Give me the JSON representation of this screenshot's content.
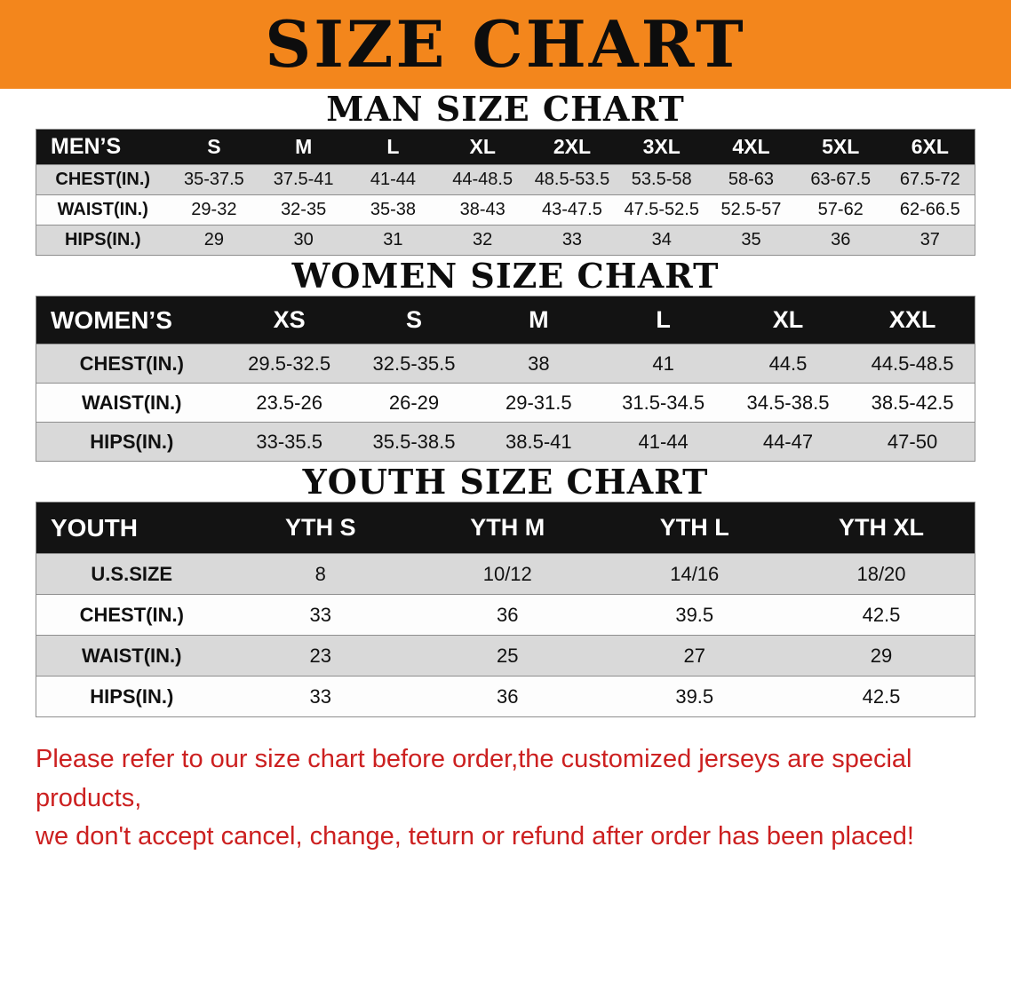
{
  "banner": {
    "title": "SIZE CHART"
  },
  "colors": {
    "banner_bg": "#f3861c",
    "table_header_bg": "#131313",
    "table_row_alt": "#d9d9d9",
    "footer_text": "#cc2020"
  },
  "footer": {
    "line1": "Please refer to our size chart before order,the customized jerseys are special products,",
    "line2": "we don't accept cancel, change, teturn or refund after order has been placed!"
  },
  "chart_data": [
    {
      "type": "table",
      "title": "MAN SIZE CHART",
      "corner": "MEN’S",
      "columns": [
        "S",
        "M",
        "L",
        "XL",
        "2XL",
        "3XL",
        "4XL",
        "5XL",
        "6XL"
      ],
      "rows": [
        {
          "label": "CHEST(IN.)",
          "values": [
            "35-37.5",
            "37.5-41",
            "41-44",
            "44-48.5",
            "48.5-53.5",
            "53.5-58",
            "58-63",
            "63-67.5",
            "67.5-72"
          ]
        },
        {
          "label": "WAIST(IN.)",
          "values": [
            "29-32",
            "32-35",
            "35-38",
            "38-43",
            "43-47.5",
            "47.5-52.5",
            "52.5-57",
            "57-62",
            "62-66.5"
          ]
        },
        {
          "label": "HIPS(IN.)",
          "values": [
            "29",
            "30",
            "31",
            "32",
            "33",
            "34",
            "35",
            "36",
            "37"
          ]
        }
      ]
    },
    {
      "type": "table",
      "title": "WOMEN SIZE CHART",
      "corner": "WOMEN’S",
      "columns": [
        "XS",
        "S",
        "M",
        "L",
        "XL",
        "XXL"
      ],
      "rows": [
        {
          "label": "CHEST(IN.)",
          "values": [
            "29.5-32.5",
            "32.5-35.5",
            "38",
            "41",
            "44.5",
            "44.5-48.5"
          ]
        },
        {
          "label": "WAIST(IN.)",
          "values": [
            "23.5-26",
            "26-29",
            "29-31.5",
            "31.5-34.5",
            "34.5-38.5",
            "38.5-42.5"
          ]
        },
        {
          "label": "HIPS(IN.)",
          "values": [
            "33-35.5",
            "35.5-38.5",
            "38.5-41",
            "41-44",
            "44-47",
            "47-50"
          ]
        }
      ]
    },
    {
      "type": "table",
      "title": "YOUTH SIZE CHART",
      "corner": "YOUTH",
      "columns": [
        "YTH S",
        "YTH M",
        "YTH L",
        "YTH XL"
      ],
      "rows": [
        {
          "label": "U.S.SIZE",
          "values": [
            "8",
            "10/12",
            "14/16",
            "18/20"
          ]
        },
        {
          "label": "CHEST(IN.)",
          "values": [
            "33",
            "36",
            "39.5",
            "42.5"
          ]
        },
        {
          "label": "WAIST(IN.)",
          "values": [
            "23",
            "25",
            "27",
            "29"
          ]
        },
        {
          "label": "HIPS(IN.)",
          "values": [
            "33",
            "36",
            "39.5",
            "42.5"
          ]
        }
      ]
    }
  ]
}
